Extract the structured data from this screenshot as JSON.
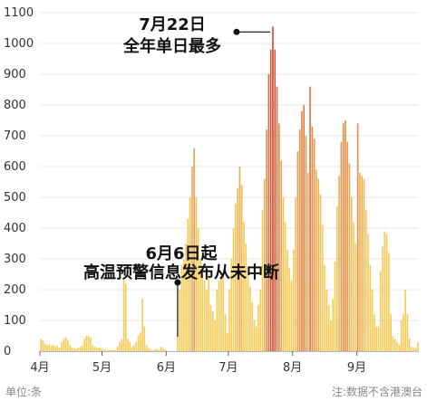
{
  "chart_data": {
    "type": "bar",
    "title": "",
    "xlabel": "",
    "ylabel": "",
    "ylim": [
      0,
      1100
    ],
    "y_ticks": [
      0,
      100,
      200,
      300,
      400,
      500,
      600,
      700,
      800,
      900,
      1000,
      1100
    ],
    "x_ticks": [
      {
        "label": "4月",
        "date": "04-01"
      },
      {
        "label": "5月",
        "date": "05-01"
      },
      {
        "label": "6月",
        "date": "06-01"
      },
      {
        "label": "7月",
        "date": "07-01"
      },
      {
        "label": "8月",
        "date": "08-01"
      },
      {
        "label": "9月",
        "date": "09-01"
      }
    ],
    "colors": {
      "low": "#f6cb57",
      "high": "#c84c3c",
      "gridline": "#e6e6e6",
      "axis": "#bbbbbb"
    },
    "grid": true,
    "annotations": [
      {
        "line1": "7月22日",
        "line2": "全年单日最多",
        "date": "07-22",
        "value": 1055
      },
      {
        "line1": "6月6日起",
        "line2": "高温预警信息发布从未中断",
        "date": "06-06",
        "value": 200
      }
    ],
    "series": [
      {
        "categories": [
          "04-01",
          "04-02",
          "04-03",
          "04-04",
          "04-05",
          "04-06",
          "04-07",
          "04-08",
          "04-09",
          "04-10",
          "04-11",
          "04-12",
          "04-13",
          "04-14",
          "04-15",
          "04-16",
          "04-17",
          "04-18",
          "04-19",
          "04-20",
          "04-21",
          "04-22",
          "04-23",
          "04-24",
          "04-25",
          "04-26",
          "04-27",
          "04-28",
          "04-29",
          "04-30",
          "05-01",
          "05-02",
          "05-03",
          "05-04",
          "05-05",
          "05-06",
          "05-07",
          "05-08",
          "05-09",
          "05-10",
          "05-11",
          "05-12",
          "05-13",
          "05-14",
          "05-15",
          "05-16",
          "05-17",
          "05-18",
          "05-19",
          "05-20",
          "05-21",
          "05-22",
          "05-23",
          "05-24",
          "05-25",
          "05-26",
          "05-27",
          "05-28",
          "05-29",
          "05-30",
          "05-31",
          "06-01",
          "06-02",
          "06-03",
          "06-04",
          "06-05",
          "06-06",
          "06-07",
          "06-08",
          "06-09",
          "06-10",
          "06-11",
          "06-12",
          "06-13",
          "06-14",
          "06-15",
          "06-16",
          "06-17",
          "06-18",
          "06-19",
          "06-20",
          "06-21",
          "06-22",
          "06-23",
          "06-24",
          "06-25",
          "06-26",
          "06-27",
          "06-28",
          "06-29",
          "06-30",
          "07-01",
          "07-02",
          "07-03",
          "07-04",
          "07-05",
          "07-06",
          "07-07",
          "07-08",
          "07-09",
          "07-10",
          "07-11",
          "07-12",
          "07-13",
          "07-14",
          "07-15",
          "07-16",
          "07-17",
          "07-18",
          "07-19",
          "07-20",
          "07-21",
          "07-22",
          "07-23",
          "07-24",
          "07-25",
          "07-26",
          "07-27",
          "07-28",
          "07-29",
          "07-30",
          "07-31",
          "08-01",
          "08-02",
          "08-03",
          "08-04",
          "08-05",
          "08-06",
          "08-07",
          "08-08",
          "08-09",
          "08-10",
          "08-11",
          "08-12",
          "08-13",
          "08-14",
          "08-15",
          "08-16",
          "08-17",
          "08-18",
          "08-19",
          "08-20",
          "08-21",
          "08-22",
          "08-23",
          "08-24",
          "08-25",
          "08-26",
          "08-27",
          "08-28",
          "08-29",
          "08-30",
          "08-31",
          "09-01",
          "09-02",
          "09-03",
          "09-04",
          "09-05",
          "09-06",
          "09-07",
          "09-08",
          "09-09",
          "09-10",
          "09-11",
          "09-12",
          "09-13",
          "09-14",
          "09-15",
          "09-16",
          "09-17",
          "09-18",
          "09-19",
          "09-20",
          "09-21",
          "09-22",
          "09-23",
          "09-24",
          "09-25",
          "09-26",
          "09-27",
          "09-28",
          "09-29",
          "09-30"
        ],
        "values": [
          40,
          35,
          25,
          20,
          22,
          18,
          20,
          15,
          18,
          12,
          30,
          40,
          45,
          35,
          20,
          12,
          10,
          8,
          12,
          15,
          18,
          40,
          50,
          50,
          45,
          20,
          15,
          10,
          12,
          10,
          5,
          5,
          3,
          4,
          5,
          3,
          4,
          15,
          30,
          40,
          230,
          220,
          40,
          30,
          15,
          20,
          30,
          50,
          60,
          170,
          80,
          20,
          10,
          5,
          3,
          5,
          8,
          4,
          15,
          10,
          5,
          0,
          0,
          0,
          0,
          0,
          50,
          200,
          280,
          300,
          350,
          430,
          500,
          600,
          660,
          500,
          400,
          300,
          250,
          230,
          200,
          250,
          150,
          130,
          100,
          200,
          230,
          240,
          250,
          120,
          60,
          200,
          300,
          400,
          480,
          530,
          600,
          540,
          420,
          350,
          260,
          210,
          160,
          100,
          80,
          150,
          200,
          460,
          560,
          720,
          900,
          980,
          1055,
          980,
          860,
          740,
          620,
          500,
          420,
          330,
          270,
          230,
          330,
          500,
          650,
          720,
          780,
          800,
          700,
          580,
          860,
          730,
          690,
          590,
          560,
          510,
          410,
          280,
          200,
          150,
          100,
          170,
          290,
          470,
          570,
          680,
          740,
          750,
          680,
          610,
          500,
          420,
          350,
          740,
          580,
          570,
          560,
          460,
          380,
          280,
          200,
          120,
          80,
          80,
          260,
          340,
          390,
          380,
          320,
          120,
          50,
          40,
          30,
          20,
          100,
          120,
          200,
          120,
          40,
          15,
          10,
          10,
          30
        ]
      }
    ]
  },
  "footer": {
    "unit_label": "单位:条",
    "note": "注:数据不含港澳台"
  }
}
